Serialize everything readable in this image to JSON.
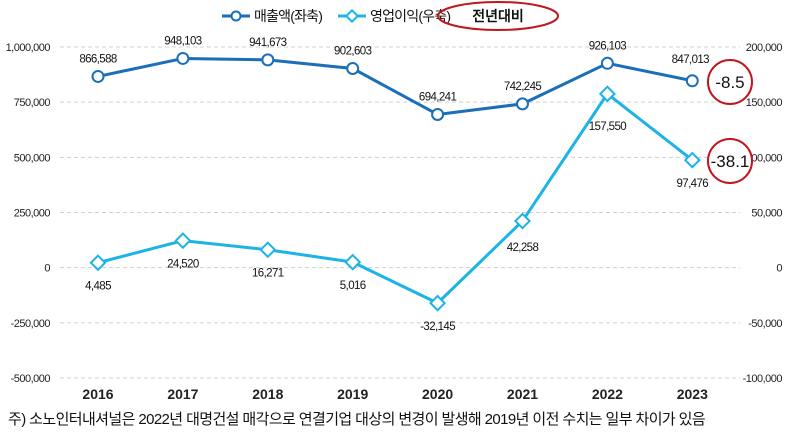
{
  "chart_data": {
    "type": "line",
    "categories": [
      "2016",
      "2017",
      "2018",
      "2019",
      "2020",
      "2021",
      "2022",
      "2023"
    ],
    "series": [
      {
        "name": "매출액(좌축)",
        "axis": "left",
        "color": "#1a6fb8",
        "marker": "circle",
        "values": [
          866588,
          948103,
          941673,
          902603,
          694241,
          742245,
          926103,
          847013
        ],
        "labels": [
          "866,588",
          "948,103",
          "941,673",
          "902,603",
          "694,241",
          "742,245",
          "926,103",
          "847,013"
        ]
      },
      {
        "name": "영업이익(우축)",
        "axis": "right",
        "color": "#1cb4e6",
        "marker": "diamond",
        "values": [
          4485,
          24520,
          16271,
          5016,
          -32145,
          42258,
          157550,
          97476
        ],
        "labels": [
          "4,485",
          "24,520",
          "16,271",
          "5,016",
          "-32,145",
          "42,258",
          "157,550",
          "97,476"
        ]
      }
    ],
    "left_axis": {
      "ylim": [
        -500000,
        1000000
      ],
      "ticks": [
        "1,000,000",
        "750,000",
        "500,000",
        "250,000",
        "0",
        "-250,000",
        "-500,000"
      ]
    },
    "right_axis": {
      "ylim": [
        -100000,
        200000
      ],
      "ticks": [
        "200,000",
        "150,000",
        "100,000",
        "50,000",
        "0",
        "-50,000",
        "-100,000"
      ]
    },
    "legend_placement": "top-center",
    "yoy_label": "전년대비",
    "yoy_values": [
      "-8.5",
      "-38.1"
    ],
    "grid": true
  },
  "footnote": "주) 소노인터내셔널은 2022년 대명건설 매각으로 연결기업 대상의 변경이 발생해 2019년 이전 수치는 일부 차이가 있음"
}
